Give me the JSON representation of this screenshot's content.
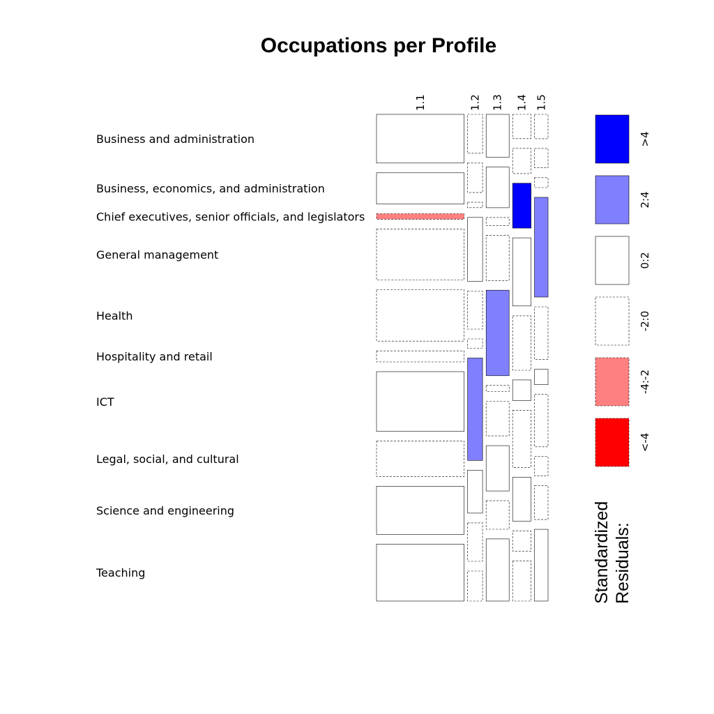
{
  "chart_data": {
    "type": "mosaic",
    "title": "Occupations per Profile",
    "xlabel": "",
    "ylabel": "",
    "columns": [
      "1.1",
      "1.2",
      "1.3",
      "1.4",
      "1.5"
    ],
    "column_shares": [
      0.548,
      0.094,
      0.144,
      0.115,
      0.085
    ],
    "rows": [
      "Business and administration",
      "Business, economics, and administration",
      "Chief executives, senior officials, and legislators",
      "General management",
      "Health",
      "Hospitality and retail",
      "ICT",
      "Legal, social, and cultural",
      "Science and engineering",
      "Teaching"
    ],
    "cells": [
      {
        "column": "1.1",
        "proportions": [
          0.106,
          0.068,
          0.012,
          0.111,
          0.112,
          0.024,
          0.13,
          0.077,
          0.105,
          0.124
        ],
        "residual_class": [
          "0:2",
          "0:2",
          "-4:-2",
          "-2:0",
          "-2:0",
          "-2:0",
          "0:2",
          "-2:0",
          "0:2",
          "0:2"
        ]
      },
      {
        "column": "1.2",
        "proportions": [
          0.087,
          0.066,
          0.012,
          0.143,
          0.085,
          0.021,
          0.229,
          0.096,
          0.086,
          0.067
        ],
        "residual_class": [
          "-2:0",
          "-2:0",
          "-2:0",
          "0:2",
          "-2:0",
          "-2:0",
          "2:4",
          "0:2",
          "-2:0",
          "-2:0"
        ]
      },
      {
        "column": "1.3",
        "proportions": [
          0.092,
          0.087,
          0.017,
          0.097,
          0.183,
          0.013,
          0.074,
          0.097,
          0.061,
          0.133
        ],
        "residual_class": [
          "0:2",
          "0:2",
          "-2:0",
          "-2:0",
          "2:4",
          "-2:0",
          "-2:0",
          "0:2",
          "-2:0",
          "0:2"
        ]
      },
      {
        "column": "1.4",
        "proportions": [
          0.053,
          0.055,
          0.098,
          0.149,
          0.119,
          0.045,
          0.125,
          0.096,
          0.044,
          0.088
        ],
        "residual_class": [
          "-2:0",
          "-2:0",
          ">4",
          "0:2",
          "-2:0",
          "0:2",
          "-2:0",
          "0:2",
          "-2:0",
          "-2:0"
        ]
      },
      {
        "column": "1.5",
        "proportions": [
          0.054,
          0.043,
          0.022,
          0.221,
          0.117,
          0.034,
          0.116,
          0.043,
          0.075,
          0.159
        ],
        "residual_class": [
          "-2:0",
          "-2:0",
          "-2:0",
          "2:4",
          "-2:0",
          "0:2",
          "-2:0",
          "-2:0",
          "-2:0",
          "0:2"
        ]
      }
    ],
    "legend": {
      "title_line1": "Standardized",
      "title_line2": "Residuals:",
      "placement": "right",
      "entries": [
        {
          "label": ">4",
          "color": "#0000ff",
          "border": "solid"
        },
        {
          "label": "2:4",
          "color": "#8080ff",
          "border": "solid"
        },
        {
          "label": "0:2",
          "color": "#ffffff",
          "border": "solid"
        },
        {
          "label": "-2:0",
          "color": "#ffffff",
          "border": "dashed"
        },
        {
          "label": "-4:-2",
          "color": "#ff8080",
          "border": "dashed"
        },
        {
          "label": "<-4",
          "color": "#ff0000",
          "border": "dashed"
        }
      ]
    },
    "colors": {
      ">4": "#0000ff",
      "2:4": "#8080ff",
      "0:2": "#ffffff",
      "-2:0": "#ffffff",
      "-4:-2": "#ff8080",
      "<-4": "#ff0000"
    },
    "dashed_classes": [
      "-2:0",
      "-4:-2",
      "<-4"
    ]
  }
}
